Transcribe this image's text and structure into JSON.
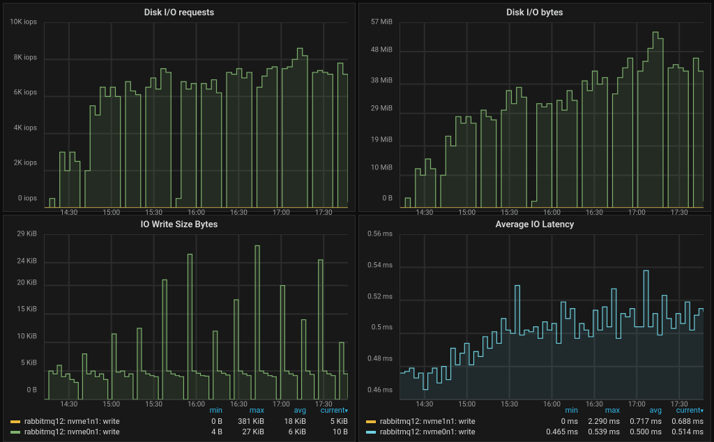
{
  "colors": {
    "background": "#181818",
    "page_bg": "#0d0d0d",
    "grid": "#2c2c2c",
    "axis_text": "#9fa0a2",
    "title_text": "#d8d9da",
    "header_text": "#33b5e5",
    "series_green": "#7eb26d",
    "series_green_fill": "rgba(126,178,109,0.12)",
    "series_orange": "#eab839",
    "series_blue": "#6ed0e0",
    "series_blue_fill": "rgba(110,208,224,0.10)"
  },
  "x_axis": {
    "labels": [
      "14:30",
      "15:00",
      "15:30",
      "16:00",
      "16:30",
      "17:00",
      "17:30"
    ],
    "positions_pct": [
      8,
      22,
      36,
      50,
      64,
      78,
      92
    ]
  },
  "panels": {
    "p1": {
      "title": "Disk I/O requests",
      "type": "line_step_filled",
      "y_ticks": [
        0,
        2,
        4,
        6,
        8,
        10
      ],
      "y_unit": "K iops",
      "y_zero_label": "0 iops",
      "ymax": 10,
      "series": {
        "green": {
          "color": "#7eb26d",
          "fill": "rgba(126,178,109,0.12)",
          "values": [
            0,
            0.5,
            0,
            3,
            2,
            3,
            2.5,
            0,
            2,
            5.5,
            5,
            6.5,
            6,
            6.5,
            6,
            0,
            6.8,
            6.3,
            6.1,
            0,
            6.5,
            7,
            6.4,
            7.5,
            7.3,
            0,
            0.5,
            6.8,
            6.4,
            6.7,
            0,
            6.7,
            6.4,
            6.9,
            6.2,
            0,
            7.3,
            7.2,
            7.5,
            7,
            7.3,
            0,
            6.5,
            7.1,
            7.5,
            7.6,
            0,
            7.5,
            7.6,
            8,
            8.6,
            8.2,
            0,
            7.3,
            7.4,
            7.3,
            7.2,
            0,
            7.8,
            7.2,
            0.3
          ]
        },
        "orange": {
          "color": "#eab839",
          "values": [
            0,
            0,
            0,
            0,
            0,
            0,
            0,
            0,
            0,
            0,
            0,
            0,
            0,
            0,
            0,
            0,
            0,
            0,
            0,
            0,
            0,
            0,
            0,
            0,
            0,
            0,
            0,
            0,
            0,
            0,
            0,
            0,
            0,
            0,
            0,
            0,
            0,
            0,
            0,
            0,
            0,
            0,
            0,
            0,
            0,
            0,
            0,
            0,
            0,
            0,
            0,
            0,
            0,
            0,
            0,
            0,
            0,
            0,
            0,
            0,
            0
          ]
        }
      }
    },
    "p2": {
      "title": "Disk I/O bytes",
      "type": "line_step_filled",
      "y_ticks": [
        0,
        10,
        19,
        29,
        38,
        48,
        57
      ],
      "y_unit": " MiB",
      "y_zero_label": "0 B",
      "ymax": 57,
      "series": {
        "green": {
          "color": "#7eb26d",
          "fill": "rgba(126,178,109,0.12)",
          "values": [
            0,
            3,
            0,
            12,
            10,
            15,
            12,
            0,
            10,
            22,
            19,
            28,
            26,
            28,
            26,
            0,
            30,
            28,
            27,
            0,
            30,
            36,
            32,
            37,
            34,
            0,
            2,
            32,
            31,
            32,
            0,
            33,
            30,
            36,
            33,
            0,
            39,
            36,
            42,
            38,
            40,
            0,
            35,
            40,
            43,
            46,
            0,
            42,
            45,
            49,
            54,
            52,
            0,
            43,
            44,
            43,
            42,
            0,
            46,
            42,
            2
          ]
        },
        "orange": {
          "color": "#eab839",
          "values": [
            0,
            0,
            0,
            0,
            0,
            0,
            0,
            0,
            0,
            0,
            0,
            0,
            0,
            0,
            0,
            0,
            0,
            0,
            0,
            0,
            0,
            0,
            0,
            0,
            0,
            0,
            0,
            0,
            0,
            0,
            0,
            0,
            0,
            0,
            0,
            0,
            0,
            0,
            0,
            0,
            0,
            0,
            0,
            0,
            0,
            0,
            0,
            0,
            0,
            0,
            0,
            0,
            0,
            0,
            0,
            0,
            0,
            0,
            0,
            0,
            0
          ]
        }
      }
    },
    "p3": {
      "title": "IO Write Size Bytes",
      "type": "line_step_filled",
      "y_ticks": [
        0,
        5,
        10,
        15,
        20,
        24,
        29
      ],
      "y_unit": " KiB",
      "y_zero_label": "0 B",
      "ymax": 29,
      "series": {
        "green": {
          "color": "#7eb26d",
          "fill": "rgba(126,178,109,0.12)",
          "values": [
            0,
            5,
            4.5,
            6,
            4,
            4.5,
            3.5,
            3,
            0,
            8,
            4.5,
            5,
            4,
            4.5,
            3.5,
            0,
            11.5,
            4.8,
            5,
            4,
            4.5,
            0,
            12.5,
            5,
            4.5,
            4.2,
            4,
            0,
            21,
            5,
            4.5,
            4.2,
            4,
            0,
            25.5,
            5,
            4.6,
            4.2,
            4.1,
            0,
            12,
            5,
            4.6,
            4.3,
            0,
            17.5,
            5,
            4.5,
            4.2,
            0,
            27,
            5,
            4.6,
            4.2,
            4,
            0,
            20,
            5,
            4.5,
            4.2,
            0,
            14,
            5,
            4.4,
            0,
            24.5,
            5,
            4.5,
            4.2,
            0,
            10,
            4.5,
            0.2
          ]
        }
      },
      "legend": {
        "columns": [
          "min",
          "max",
          "avg",
          "current"
        ],
        "sort": "current",
        "rows": [
          {
            "color": "#eab839",
            "label": "rabbitmq12: nvme1n1: write",
            "min": "0 B",
            "max": "381 KiB",
            "avg": "18 KiB",
            "current": "5 KiB"
          },
          {
            "color": "#7eb26d",
            "label": "rabbitmq12: nvme0n1: write",
            "min": "4 B",
            "max": "27 KiB",
            "avg": "6 KiB",
            "current": "10 B"
          }
        ]
      }
    },
    "p4": {
      "title": "Average IO Latency",
      "type": "line_step_filled",
      "y_ticks": [
        0.46,
        0.48,
        0.5,
        0.52,
        0.54,
        0.56
      ],
      "y_unit": " ms",
      "y_zero_label": "0.46 ms",
      "ymin": 0.46,
      "ymax": 0.56,
      "series": {
        "blue": {
          "color": "#6ed0e0",
          "fill": "rgba(110,208,224,0.10)",
          "values": [
            0.476,
            0.477,
            0.479,
            0.473,
            0.476,
            0.466,
            0.476,
            0.479,
            0.47,
            0.48,
            0.472,
            0.491,
            0.481,
            0.488,
            0.494,
            0.481,
            0.489,
            0.486,
            0.498,
            0.491,
            0.501,
            0.494,
            0.509,
            0.502,
            0.5,
            0.529,
            0.499,
            0.502,
            0.501,
            0.504,
            0.497,
            0.507,
            0.502,
            0.506,
            0.494,
            0.519,
            0.509,
            0.515,
            0.497,
            0.506,
            0.502,
            0.498,
            0.514,
            0.502,
            0.516,
            0.504,
            0.527,
            0.497,
            0.512,
            0.51,
            0.515,
            0.504,
            0.504,
            0.538,
            0.504,
            0.512,
            0.499,
            0.523,
            0.509,
            0.503,
            0.512,
            0.506,
            0.519,
            0.502,
            0.511,
            0.515,
            0.513
          ]
        }
      },
      "legend": {
        "columns": [
          "min",
          "max",
          "avg",
          "current"
        ],
        "sort": "current",
        "rows": [
          {
            "color": "#eab839",
            "label": "rabbitmq12: nvme1n1: write",
            "min": "0 ms",
            "max": "2.290 ms",
            "avg": "0.717 ms",
            "current": "0.688 ms"
          },
          {
            "color": "#6ed0e0",
            "label": "rabbitmq12: nvme0n1: write",
            "min": "0.465 ms",
            "max": "0.539 ms",
            "avg": "0.500 ms",
            "current": "0.514 ms"
          }
        ]
      }
    }
  }
}
